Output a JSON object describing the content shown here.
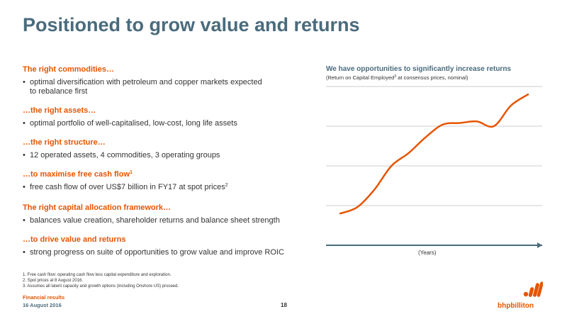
{
  "title": "Positioned to grow value and returns",
  "sections": [
    {
      "heading": "The right commodities…",
      "heading_sup": "",
      "bullet": "optimal diversification with petroleum and copper markets expected",
      "bullet_cont": "to rebalance first",
      "bullet_sup": ""
    },
    {
      "heading": "…the right assets…",
      "heading_sup": "",
      "bullet": "optimal portfolio of well-capitalised, low-cost, long life assets",
      "bullet_cont": "",
      "bullet_sup": ""
    },
    {
      "heading": "…the right structure…",
      "heading_sup": "",
      "bullet": "12 operated assets, 4 commodities, 3 operating groups",
      "bullet_cont": "",
      "bullet_sup": ""
    },
    {
      "heading": "…to maximise free cash flow",
      "heading_sup": "1",
      "bullet": "free cash flow of over US$7 billion in FY17 at spot prices",
      "bullet_cont": "",
      "bullet_sup": "2"
    },
    {
      "heading": "The right capital allocation framework…",
      "heading_sup": "",
      "bullet": "balances value creation, shareholder returns and balance sheet strength",
      "bullet_cont": "",
      "bullet_sup": ""
    },
    {
      "heading": "…to drive value and returns",
      "heading_sup": "",
      "bullet": "strong progress on suite of opportunities to grow value and improve ROIC",
      "bullet_cont": "",
      "bullet_sup": ""
    }
  ],
  "bullet_char": "•",
  "footnotes": [
    "1.  Free cash flow: operating cash flow less capital expenditure and exploration.",
    "2.  Spot prices at 8 August 2016.",
    "3.  Assumes all latent capacity and growth options (including Onshore US) proceed."
  ],
  "footer": {
    "label": "Financial results",
    "date": "16 August 2016",
    "page": "18"
  },
  "logo": {
    "text": "bhpbilliton"
  },
  "colors": {
    "title": "#4a6b7c",
    "accent": "#e65400",
    "axis": "#4a6b7c",
    "grid": "#cccccc"
  },
  "chart_data": {
    "type": "line",
    "title": "We have opportunities to significantly increase returns",
    "subtitle_pre": "(Return on Capital Employed",
    "subtitle_sup": "3",
    "subtitle_post": " at consensus prices, nominal)",
    "xlabel": "(Years)",
    "ylabel": "",
    "grid": true,
    "gridlines": 3,
    "ylim": [
      0,
      100
    ],
    "series": [
      {
        "values": [
          20,
          24,
          35,
          50,
          58,
          68,
          76,
          77,
          78,
          75,
          88,
          95
        ]
      }
    ]
  }
}
